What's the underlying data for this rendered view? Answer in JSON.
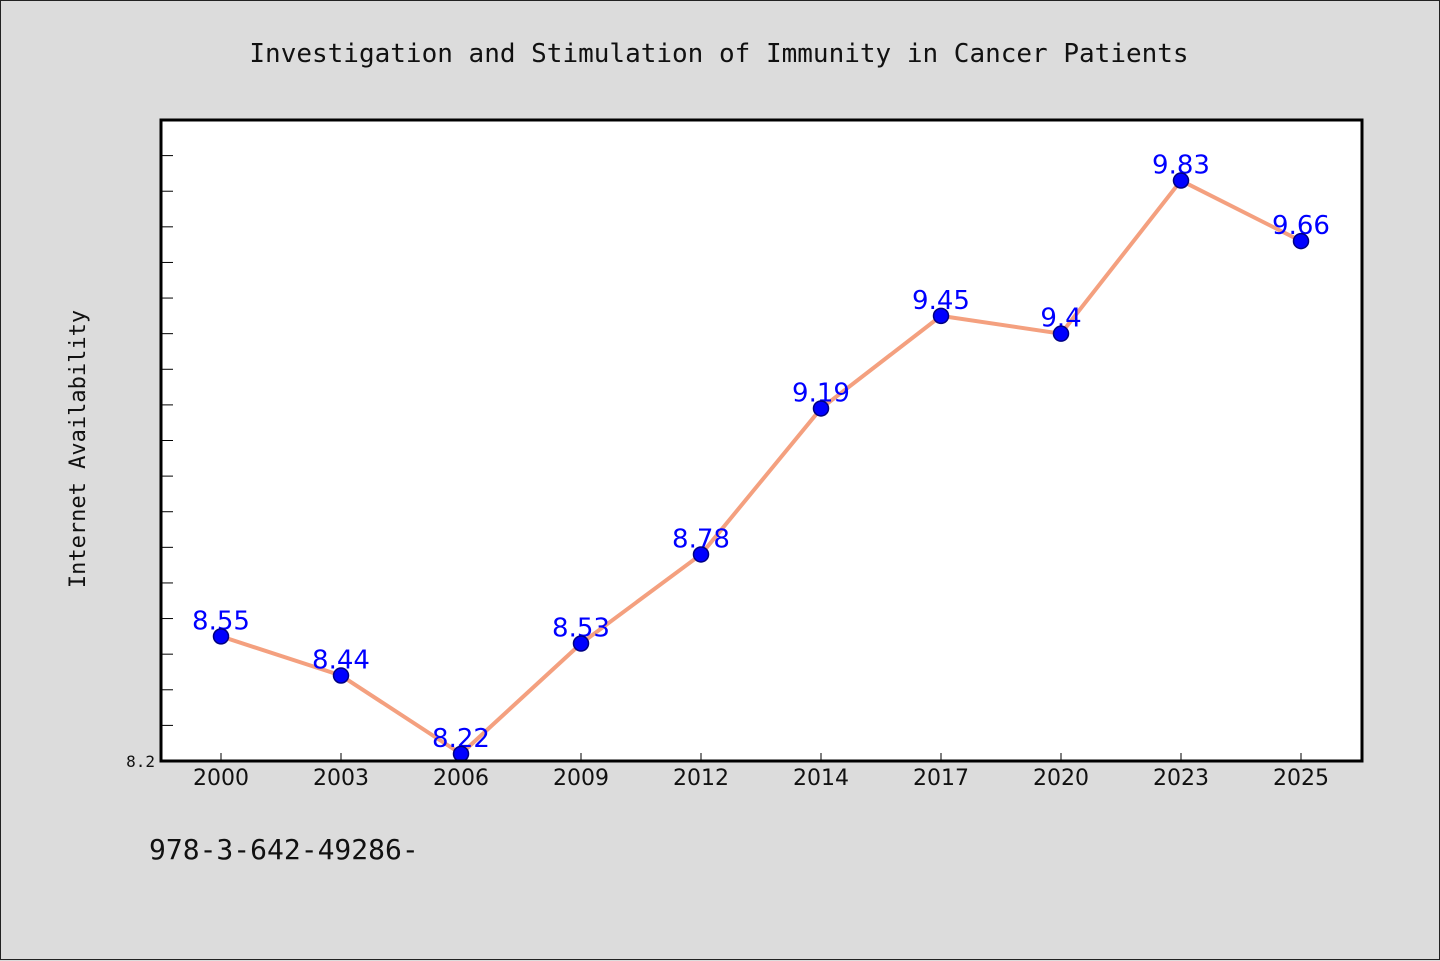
{
  "chart_data": {
    "type": "line",
    "title": "Investigation and Stimulation of Immunity in Cancer Patients",
    "xlabel": "",
    "ylabel": "Internet Availability",
    "categories": [
      "2000",
      "2003",
      "2006",
      "2009",
      "2012",
      "2014",
      "2017",
      "2020",
      "2023",
      "2025"
    ],
    "series": [
      {
        "values": [
          8.55,
          8.44,
          8.22,
          8.53,
          8.78,
          9.19,
          9.45,
          9.4,
          9.83,
          9.66
        ],
        "labels": [
          "8.55",
          "8.44",
          "8.22",
          "8.53",
          "8.78",
          "9.19",
          "9.45",
          "9.4",
          "9.83",
          "9.66"
        ]
      }
    ],
    "ylim": [
      8.2,
      10.0
    ],
    "ytick_label": "8.2",
    "grid": false,
    "legend": "none"
  },
  "colors": {
    "line": "#f4a07f",
    "marker_fill": "#0000ff",
    "marker_edge": "#000080",
    "label": "#0000ff",
    "plot_bg": "#ffffff",
    "page_bg": "#dcdcdc"
  },
  "footer": {
    "text": "978-3-642-49286-"
  }
}
